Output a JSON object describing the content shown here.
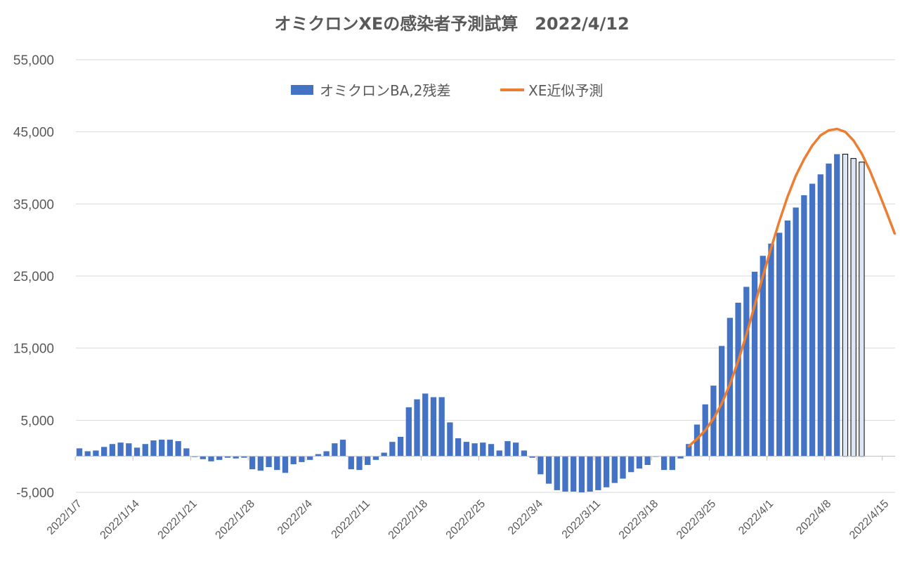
{
  "chart_data": {
    "type": "bar",
    "title": "オミクロンXEの感染者予測試算　2022/4/12",
    "ylim": [
      -5000,
      55000
    ],
    "yticks": [
      -5000,
      5000,
      15000,
      25000,
      35000,
      45000,
      55000
    ],
    "ytick_labels": [
      "-5,000",
      "5,000",
      "15,000",
      "25,000",
      "35,000",
      "45,000",
      "55,000"
    ],
    "xtick_labels": [
      "2022/1/7",
      "2022/1/14",
      "2022/1/21",
      "2022/1/28",
      "2022/2/4",
      "2022/2/11",
      "2022/2/18",
      "2022/2/25",
      "2022/3/4",
      "2022/3/11",
      "2022/3/18",
      "2022/3/25",
      "2022/4/1",
      "2022/4/8",
      "2022/4/15"
    ],
    "grid": true,
    "legend_position": "top-center",
    "colors": {
      "bar": "#4472C4",
      "line": "#ED7D31",
      "projected_bar": "#DDE6F5",
      "axis": "#BFBFBF",
      "grid": "#D9D9D9",
      "text": "#595959"
    },
    "series": [
      {
        "name": "オミクロンBA,2残差",
        "type": "bar",
        "values": [
          1100,
          700,
          800,
          1300,
          1700,
          1900,
          1800,
          1200,
          1700,
          2200,
          2300,
          2300,
          2100,
          1100,
          -100,
          -400,
          -700,
          -500,
          -200,
          -300,
          -200,
          -1800,
          -2000,
          -1500,
          -1900,
          -2300,
          -1100,
          -800,
          -500,
          300,
          700,
          1800,
          2300,
          -1800,
          -1900,
          -1200,
          -500,
          500,
          2000,
          2700,
          6800,
          7900,
          8700,
          8200,
          8200,
          4700,
          2500,
          2000,
          1800,
          1900,
          1700,
          800,
          2100,
          1900,
          800,
          -200,
          -2500,
          -3800,
          -4700,
          -4900,
          -4900,
          -5000,
          -4900,
          -4700,
          -4300,
          -3700,
          -3100,
          -2200,
          -1700,
          -1200,
          0,
          -1900,
          -1900,
          -300,
          1700,
          4400,
          7200,
          9800,
          15300,
          19200,
          21300,
          23500,
          25600,
          27800,
          29500,
          31000,
          32700,
          34500,
          36200,
          37800,
          39100,
          40600,
          41900
        ],
        "projected_values": [
          41900,
          41300,
          40800
        ]
      },
      {
        "name": "XE近似予測",
        "type": "line",
        "start_day": 74,
        "values": [
          1400,
          2400,
          3600,
          5200,
          7300,
          10000,
          13200,
          16900,
          20900,
          25000,
          28900,
          32600,
          36000,
          38900,
          41200,
          43100,
          44500,
          45200,
          45400,
          45000,
          43800,
          42000,
          39600,
          36800,
          33900,
          30900
        ]
      }
    ]
  }
}
